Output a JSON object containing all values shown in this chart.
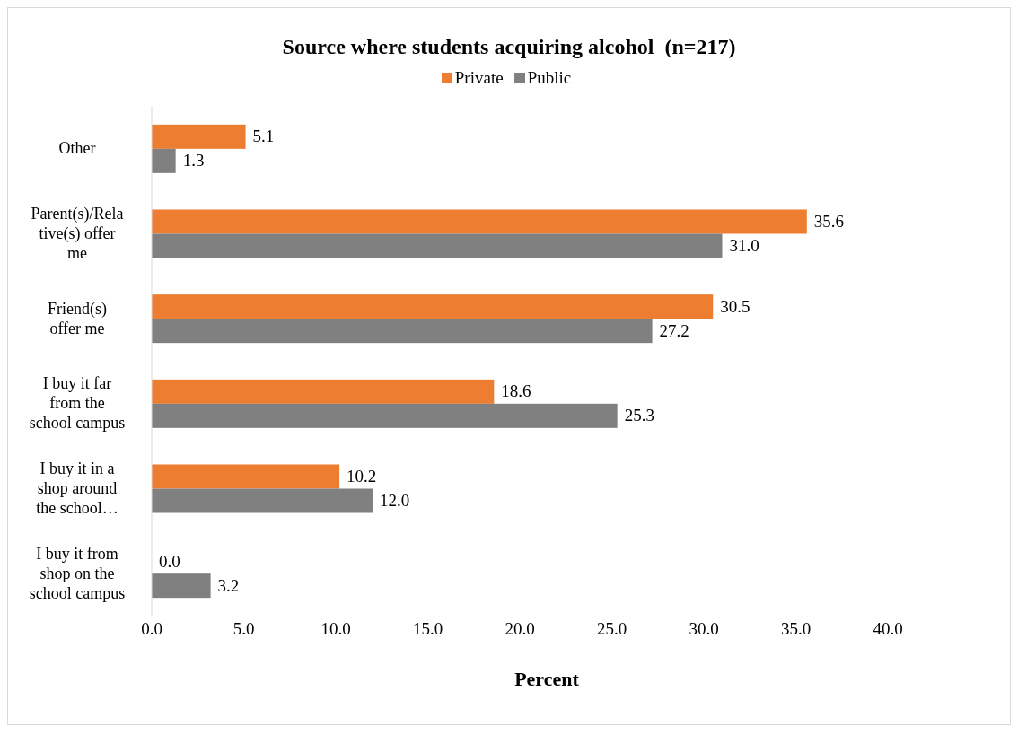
{
  "chart_data": {
    "type": "bar",
    "orientation": "horizontal",
    "title": "Source where students acquiring alcohol  (n=217)",
    "xlabel": "Percent",
    "categories": [
      "Other",
      "Parent(s)/Relative(s) offer me",
      "Friend(s) offer me",
      "I buy it far from the school campus",
      "I buy it in a shop around the school…",
      "I buy it from shop on the school campus"
    ],
    "series": [
      {
        "name": "Private",
        "color": "#ed7d31",
        "values": [
          5.1,
          35.6,
          30.5,
          18.6,
          10.2,
          0.0
        ],
        "value_labels": [
          "5.1",
          "35.6",
          "30.5",
          "18.6",
          "10.2",
          "0.0"
        ]
      },
      {
        "name": "Public",
        "color": "#808080",
        "values": [
          1.3,
          31.0,
          27.2,
          25.3,
          12.0,
          3.2
        ],
        "value_labels": [
          "1.3",
          "31.0",
          "27.2",
          "25.3",
          "12.0",
          "3.2"
        ]
      }
    ],
    "xlim": [
      0,
      40
    ],
    "xticks": [
      {
        "value": 0,
        "label": "0.0"
      },
      {
        "value": 5,
        "label": "5.0"
      },
      {
        "value": 10,
        "label": "10.0"
      },
      {
        "value": 15,
        "label": "15.0"
      },
      {
        "value": 20,
        "label": "20.0"
      },
      {
        "value": 25,
        "label": "25.0"
      },
      {
        "value": 30,
        "label": "30.0"
      },
      {
        "value": 35,
        "label": "35.0"
      },
      {
        "value": 40,
        "label": "40.0"
      }
    ],
    "grid": false,
    "legend": "top"
  }
}
